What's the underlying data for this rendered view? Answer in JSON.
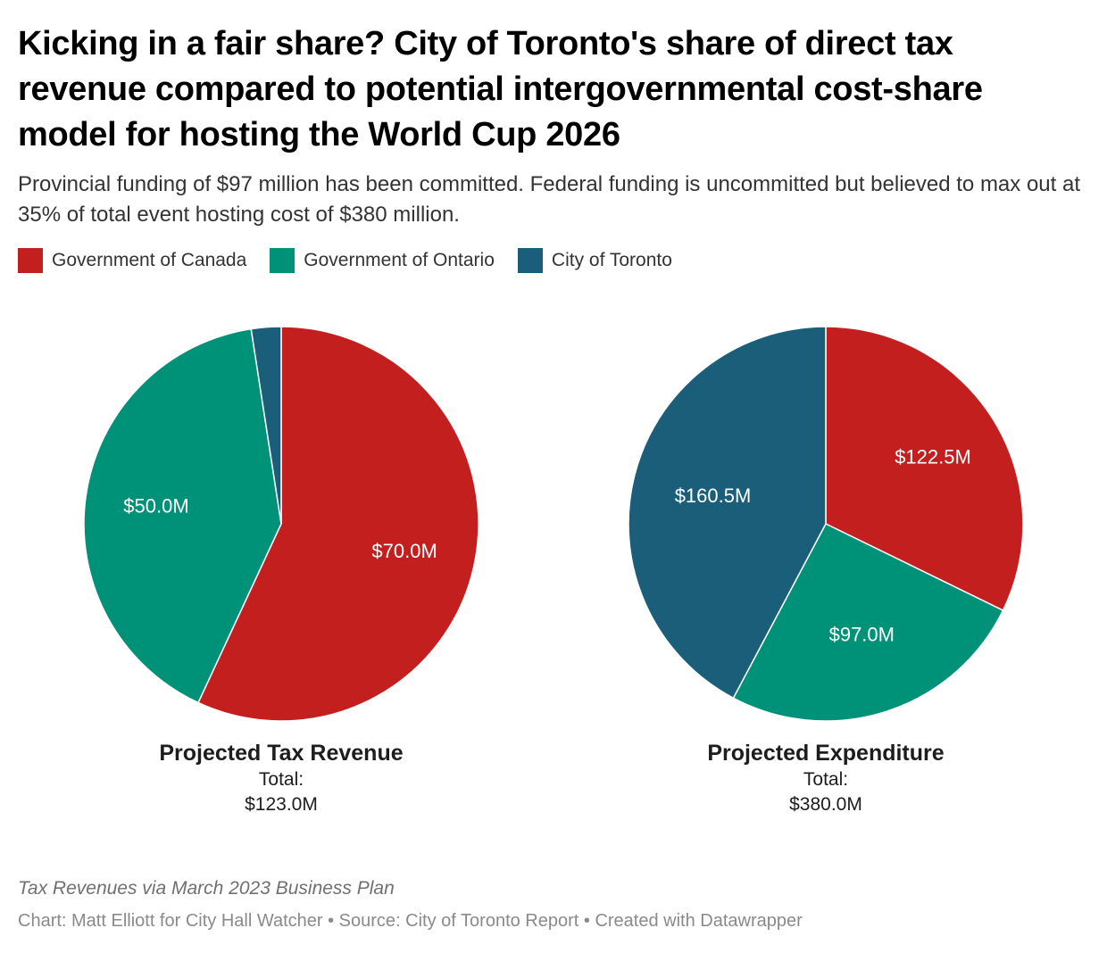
{
  "title": "Kicking in a fair share? City of Toronto's share of direct tax revenue compared to potential intergovernmental cost-share model for hosting the World Cup 2026",
  "subtitle": "Provincial funding of $97 million has been committed. Federal funding is uncommitted but believed to max out at 35% of total event hosting cost of $380 million.",
  "legend": [
    {
      "label": "Government of Canada",
      "color": "#c41f1f"
    },
    {
      "label": "Government of Ontario",
      "color": "#009179"
    },
    {
      "label": "City of Toronto",
      "color": "#1a5e7a"
    }
  ],
  "chart_data": [
    {
      "type": "pie",
      "title": "Projected Tax Revenue",
      "total_label": "Total:",
      "total_value": "$123.0M",
      "slices": [
        {
          "name": "Government of Canada",
          "value": 70.0,
          "label": "$70.0M",
          "color": "#c41f1f"
        },
        {
          "name": "Government of Ontario",
          "value": 50.0,
          "label": "$50.0M",
          "color": "#009179"
        },
        {
          "name": "City of Toronto",
          "value": 3.0,
          "label": "",
          "color": "#1a5e7a"
        }
      ]
    },
    {
      "type": "pie",
      "title": "Projected Expenditure",
      "total_label": "Total:",
      "total_value": "$380.0M",
      "slices": [
        {
          "name": "Government of Canada",
          "value": 122.5,
          "label": "$122.5M",
          "color": "#c41f1f"
        },
        {
          "name": "Government of Ontario",
          "value": 97.0,
          "label": "$97.0M",
          "color": "#009179"
        },
        {
          "name": "City of Toronto",
          "value": 160.5,
          "label": "$160.5M",
          "color": "#1a5e7a"
        }
      ]
    }
  ],
  "notes": "Tax Revenues via March 2023 Business Plan",
  "footer": "Chart: Matt Elliott for City Hall Watcher • Source: City of Toronto Report • Created with Datawrapper"
}
